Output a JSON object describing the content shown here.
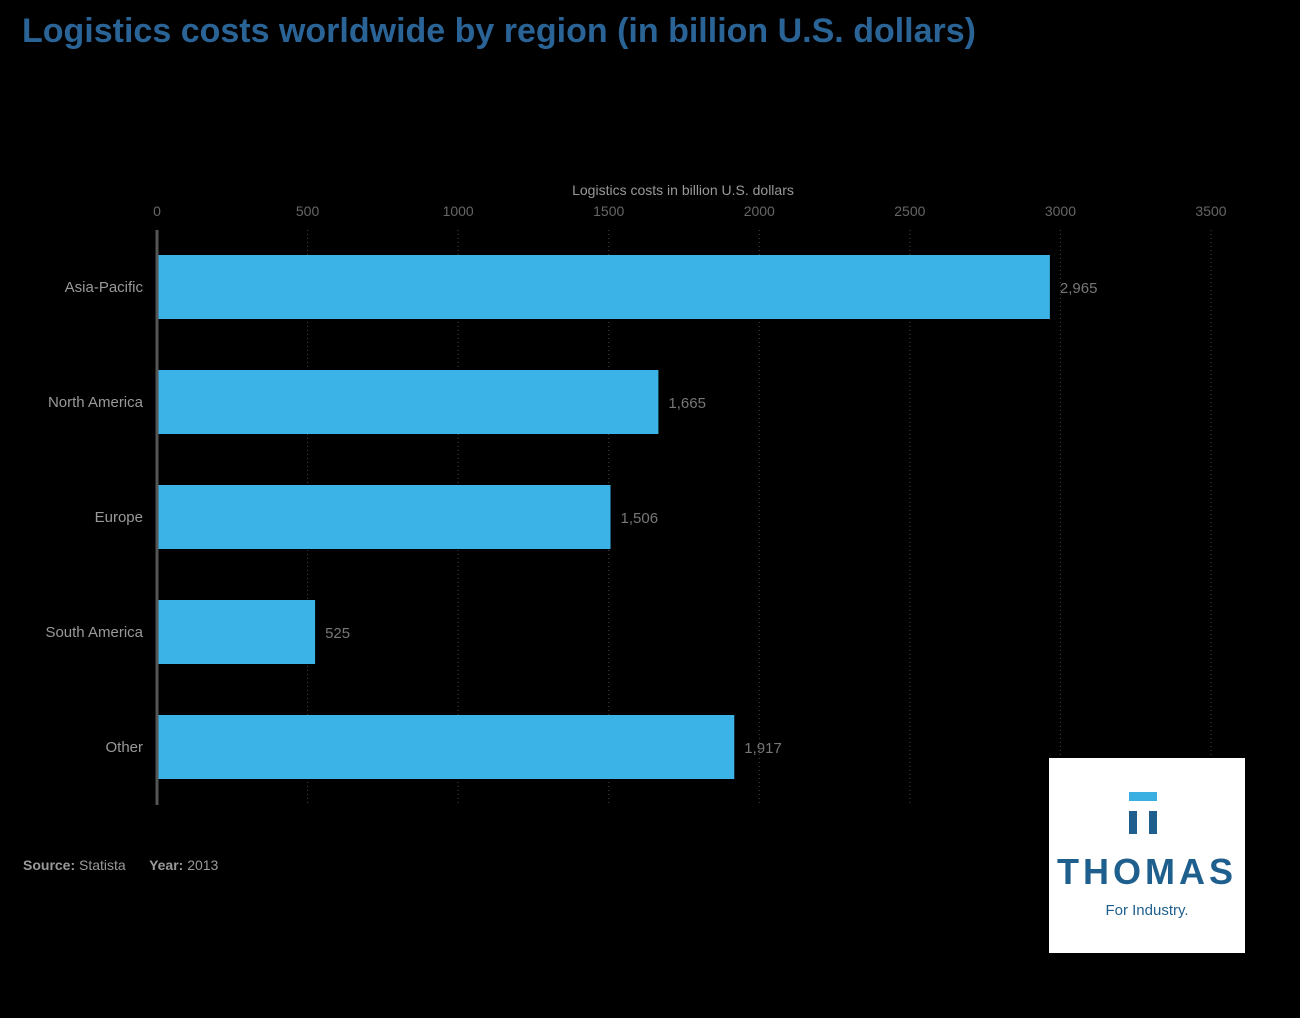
{
  "title": "Logistics costs worldwide by region (in billion U.S. dollars)",
  "chart_data": {
    "type": "bar",
    "orientation": "horizontal",
    "categories": [
      "Asia-Pacific",
      "North America",
      "Europe",
      "South America",
      "Other"
    ],
    "values": [
      2965,
      1665,
      1506,
      525,
      1917
    ],
    "value_labels": [
      "2,965",
      "1,665",
      "1,506",
      "525",
      "1,917"
    ],
    "xlabel": "Logistics costs in billion U.S. dollars",
    "xlim": [
      0,
      3500
    ],
    "xticks": [
      0,
      500,
      1000,
      1500,
      2000,
      2500,
      3000,
      3500
    ],
    "axis_position": "top",
    "grid": true,
    "bar_color": "#3bb3e6"
  },
  "footer": {
    "source_label": "Source:",
    "source": "Statista",
    "year_label": "Year:",
    "year": "2013"
  },
  "logo": {
    "name": "THOMAS",
    "tagline": "For Industry.",
    "tm": "™"
  }
}
